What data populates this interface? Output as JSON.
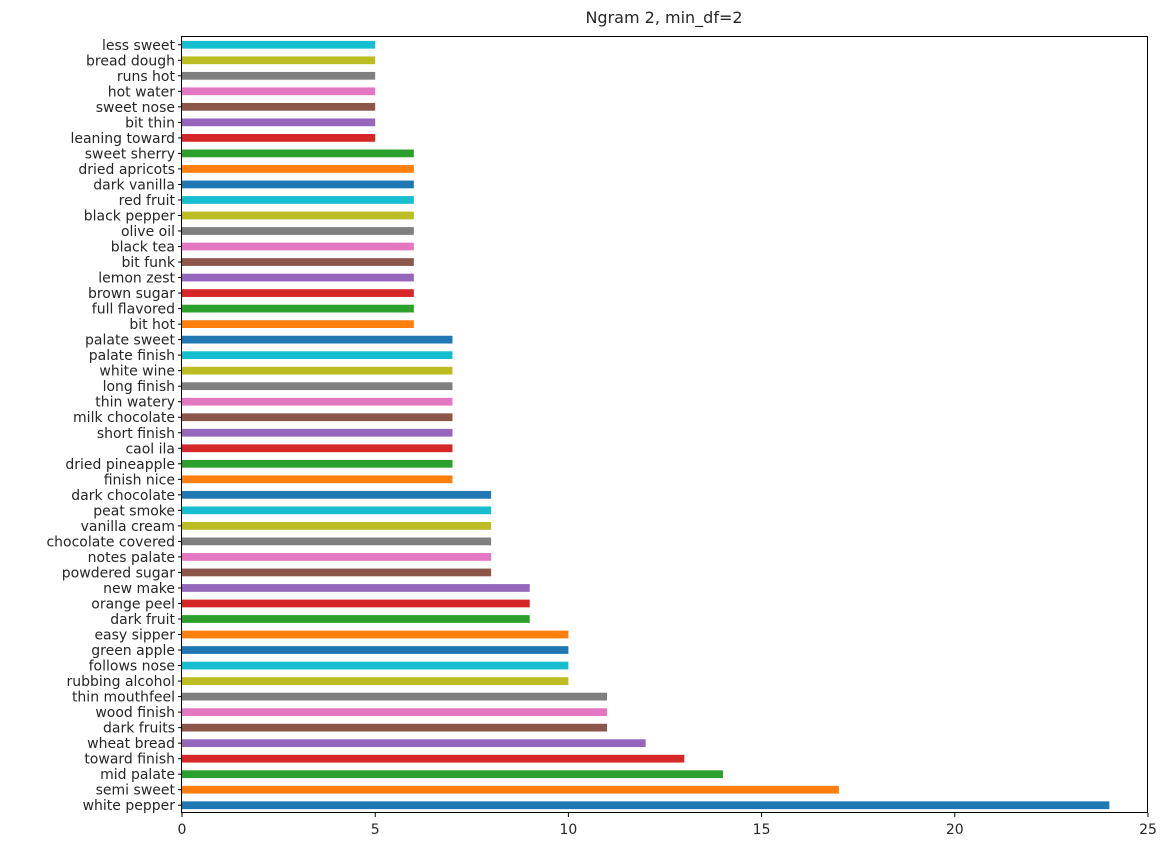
{
  "chart_data": {
    "type": "bar",
    "orientation": "horizontal",
    "title": "Ngram 2, min_df=2",
    "xlabel": "",
    "ylabel": "",
    "xlim": [
      0,
      25
    ],
    "xticks": [
      0,
      5,
      10,
      15,
      20,
      25
    ],
    "xtick_labels": [
      "0",
      "5",
      "10",
      "15",
      "20",
      "25"
    ],
    "grid": false,
    "legend": "none",
    "palette": [
      "#1f77b4",
      "#ff7f0e",
      "#2ca02c",
      "#d62728",
      "#9467bd",
      "#8c564b",
      "#e377c2",
      "#7f7f7f",
      "#bcbd22",
      "#17becf"
    ],
    "categories": [
      "white pepper",
      "semi sweet",
      "mid palate",
      "toward finish",
      "wheat bread",
      "dark fruits",
      "wood finish",
      "thin mouthfeel",
      "rubbing alcohol",
      "follows nose",
      "green apple",
      "easy sipper",
      "dark fruit",
      "orange peel",
      "new make",
      "powdered sugar",
      "notes palate",
      "chocolate covered",
      "vanilla cream",
      "peat smoke",
      "dark chocolate",
      "finish nice",
      "dried pineapple",
      "caol ila",
      "short finish",
      "milk chocolate",
      "thin watery",
      "long finish",
      "white wine",
      "palate finish",
      "palate sweet",
      "bit hot",
      "full flavored",
      "brown sugar",
      "lemon zest",
      "bit funk",
      "black tea",
      "olive oil",
      "black pepper",
      "red fruit",
      "dark vanilla",
      "dried apricots",
      "sweet sherry",
      "leaning toward",
      "bit thin",
      "sweet nose",
      "hot water",
      "runs hot",
      "bread dough",
      "less sweet"
    ],
    "values": [
      24,
      17,
      14,
      13,
      12,
      11,
      11,
      11,
      10,
      10,
      10,
      10,
      9,
      9,
      9,
      8,
      8,
      8,
      8,
      8,
      8,
      7,
      7,
      7,
      7,
      7,
      7,
      7,
      7,
      7,
      7,
      6,
      6,
      6,
      6,
      6,
      6,
      6,
      6,
      6,
      6,
      6,
      6,
      5,
      5,
      5,
      5,
      5,
      5,
      5
    ]
  }
}
